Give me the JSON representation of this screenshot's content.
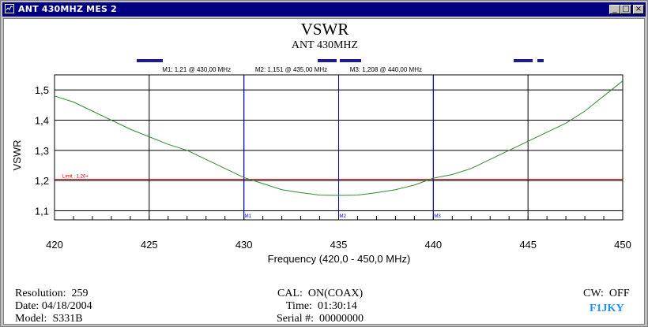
{
  "window": {
    "title": "ANT 430MHZ MES 2",
    "controls": [
      "_",
      "□",
      "×"
    ]
  },
  "chart_data": {
    "type": "line",
    "title": "VSWR",
    "subtitle": "ANT 430MHZ",
    "xlabel": "Frequency (420,0 - 450,0 MHz)",
    "ylabel": "VSWR",
    "xlim": [
      420,
      450
    ],
    "ylim": [
      1.07,
      1.55
    ],
    "x_ticks": [
      420,
      425,
      430,
      435,
      440,
      445,
      450
    ],
    "y_ticks": [
      "1,1",
      "1,2",
      "1,3",
      "1,4",
      "1,5"
    ],
    "y_tick_values": [
      1.1,
      1.2,
      1.3,
      1.4,
      1.5
    ],
    "grid": true,
    "series": [
      {
        "color": "#2e8b2e",
        "x": [
          420,
          421,
          422,
          423,
          424,
          425,
          426,
          427,
          428,
          429,
          430,
          431,
          432,
          433,
          434,
          435,
          436,
          437,
          438,
          439,
          440,
          441,
          442,
          443,
          444,
          445,
          446,
          447,
          448,
          449,
          450
        ],
        "y": [
          1.48,
          1.46,
          1.43,
          1.4,
          1.37,
          1.345,
          1.32,
          1.3,
          1.27,
          1.24,
          1.21,
          1.19,
          1.17,
          1.16,
          1.152,
          1.151,
          1.152,
          1.16,
          1.17,
          1.185,
          1.208,
          1.22,
          1.24,
          1.27,
          1.3,
          1.33,
          1.36,
          1.39,
          1.43,
          1.48,
          1.53
        ]
      }
    ],
    "limit_line": {
      "value": 1.204,
      "label": "Limit : 1,20+",
      "color": "#cc0000"
    },
    "markers": [
      {
        "name": "M1",
        "x": 430,
        "label": "M1: 1,21  @ 430,00 MHz",
        "tag": "M1"
      },
      {
        "name": "M2",
        "x": 435,
        "label": "M2: 1,151  @ 435,00 MHz",
        "tag": "M2"
      },
      {
        "name": "M3",
        "x": 440,
        "label": "M3: 1,208  @ 440,00 MHz",
        "tag": "M3"
      }
    ]
  },
  "info": {
    "resolution": "Resolution:  259",
    "date": "Date: 04/18/2004",
    "model": "Model:  S331B",
    "cal": "CAL:  ON(COAX)",
    "time": "Time:  01:30:14",
    "serial": "Serial #:  00000000",
    "cw": "CW:  OFF",
    "brand": "F1JKY"
  }
}
